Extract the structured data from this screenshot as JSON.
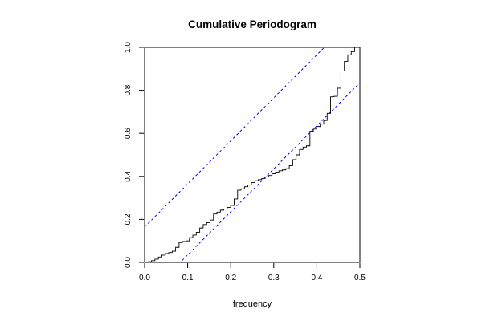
{
  "chart_data": {
    "type": "line",
    "title": "Cumulative Periodogram",
    "xlabel": "frequency",
    "ylabel": "",
    "xlim": [
      0,
      0.5
    ],
    "ylim": [
      0,
      1
    ],
    "x_ticks": [
      "0.0",
      "0.1",
      "0.2",
      "0.3",
      "0.4",
      "0.5"
    ],
    "y_ticks": [
      "0.0",
      "0.2",
      "0.4",
      "0.6",
      "0.8",
      "1.0"
    ],
    "grid": false,
    "legend": "none",
    "colors": {
      "series": "#000000",
      "bands": "#0000ff"
    },
    "series": [
      {
        "kind": "step",
        "x": [
          0.0,
          0.008,
          0.016,
          0.024,
          0.032,
          0.04,
          0.048,
          0.056,
          0.064,
          0.072,
          0.08,
          0.088,
          0.096,
          0.104,
          0.112,
          0.12,
          0.128,
          0.136,
          0.144,
          0.152,
          0.16,
          0.168,
          0.176,
          0.184,
          0.192,
          0.2,
          0.208,
          0.216,
          0.224,
          0.232,
          0.24,
          0.248,
          0.256,
          0.264,
          0.272,
          0.28,
          0.288,
          0.296,
          0.304,
          0.312,
          0.32,
          0.328,
          0.336,
          0.344,
          0.352,
          0.36,
          0.368,
          0.376,
          0.384,
          0.392,
          0.4,
          0.408,
          0.416,
          0.424,
          0.432,
          0.44,
          0.448,
          0.456,
          0.464,
          0.472,
          0.48,
          0.488,
          0.496,
          0.5
        ],
        "y": [
          0.0,
          0.003,
          0.008,
          0.015,
          0.025,
          0.034,
          0.041,
          0.046,
          0.052,
          0.07,
          0.092,
          0.097,
          0.1,
          0.115,
          0.127,
          0.14,
          0.16,
          0.176,
          0.185,
          0.197,
          0.225,
          0.234,
          0.243,
          0.248,
          0.256,
          0.265,
          0.295,
          0.336,
          0.342,
          0.352,
          0.36,
          0.371,
          0.38,
          0.385,
          0.39,
          0.398,
          0.404,
          0.412,
          0.42,
          0.426,
          0.43,
          0.436,
          0.45,
          0.478,
          0.5,
          0.525,
          0.536,
          0.542,
          0.61,
          0.62,
          0.632,
          0.643,
          0.66,
          0.693,
          0.77,
          0.772,
          0.81,
          0.89,
          0.935,
          0.965,
          0.98,
          1.0,
          1.0,
          1.0
        ]
      },
      {
        "kind": "dashed-line",
        "x": [
          0,
          0.5
        ],
        "y": [
          0.165,
          1.165
        ]
      },
      {
        "kind": "dashed-line",
        "x": [
          0,
          0.5
        ],
        "y": [
          -0.165,
          0.835
        ]
      }
    ]
  }
}
